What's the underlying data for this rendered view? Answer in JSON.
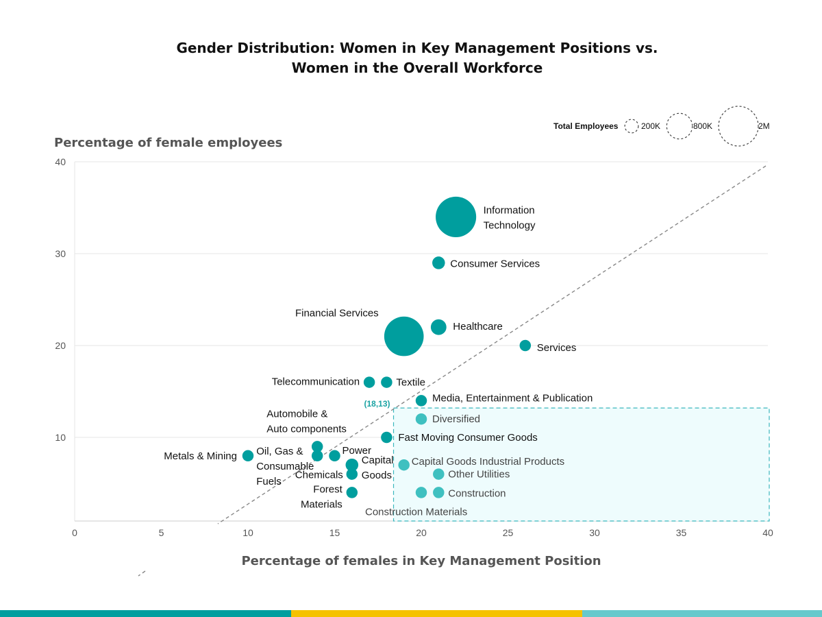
{
  "chart_data": {
    "type": "scatter",
    "title_lines": [
      "Gender Distribution: Women in Key Management Positions vs.",
      "Women in the Overall Workforce"
    ],
    "xlabel": "Percentage of females in Key Management Position",
    "ylabel": "Percentage of female employees",
    "xlim": [
      0,
      40
    ],
    "ylim": [
      0,
      40
    ],
    "x_ticks": [
      0,
      5,
      10,
      15,
      20,
      25,
      30,
      35,
      40
    ],
    "y_ticks": [
      10,
      20,
      30,
      40
    ],
    "grid": "horizontal",
    "reference_line": "dashed diagonal y = x",
    "legend": {
      "title": "Total Employees",
      "placement": "top-right",
      "items": [
        {
          "label": "200K",
          "value": 200000
        },
        {
          "label": "800K",
          "value": 800000
        },
        {
          "label": "2M",
          "value": 2000000
        }
      ]
    },
    "colors": {
      "point": "#009e9e",
      "point_highlight": "#3fc0c0",
      "highlight_box": "#3ab6bd",
      "annotation": "#1aa3a3"
    },
    "highlight_region": {
      "x": [
        18.4,
        40
      ],
      "y": [
        0,
        13.2
      ],
      "annotation": "(18,13)"
    },
    "points": [
      {
        "name": "Information Technology",
        "label_lines": [
          "Information",
          "Technology"
        ],
        "x": 22,
        "y": 34,
        "employees": 1800000,
        "highlight": false
      },
      {
        "name": "Consumer Services",
        "label_lines": [
          "Consumer Services"
        ],
        "x": 21,
        "y": 29,
        "employees": 100000,
        "highlight": false
      },
      {
        "name": "Healthcare",
        "label_lines": [
          "Healthcare"
        ],
        "x": 21,
        "y": 22,
        "employees": 180000,
        "highlight": false
      },
      {
        "name": "Financial Services",
        "label_lines": [
          "Financial Services"
        ],
        "x": 19,
        "y": 21,
        "employees": 1700000,
        "highlight": false
      },
      {
        "name": "Services",
        "label_lines": [
          "Services"
        ],
        "x": 26,
        "y": 20,
        "employees": 70000,
        "highlight": false
      },
      {
        "name": "Telecommunication",
        "label_lines": [
          "Telecommunication"
        ],
        "x": 17,
        "y": 16,
        "employees": 70000,
        "highlight": false
      },
      {
        "name": "Textile",
        "label_lines": [
          "Textile"
        ],
        "x": 18,
        "y": 16,
        "employees": 70000,
        "highlight": false
      },
      {
        "name": "Media, Entertainment & Publication",
        "label_lines": [
          "Media, Entertainment & Publication"
        ],
        "x": 20,
        "y": 14,
        "employees": 70000,
        "highlight": false
      },
      {
        "name": "Diversified",
        "label_lines": [
          "Diversified"
        ],
        "x": 20,
        "y": 12,
        "employees": 70000,
        "highlight": true
      },
      {
        "name": "Fast Moving Consumer Goods",
        "label_lines": [
          "Fast Moving Consumer Goods"
        ],
        "x": 18,
        "y": 10,
        "employees": 70000,
        "highlight": false
      },
      {
        "name": "Automobile & Auto components",
        "label_lines": [
          "Automobile &",
          "Auto components"
        ],
        "x": 14,
        "y": 9,
        "employees": 70000,
        "highlight": false
      },
      {
        "name": "Oil, Gas & Consumable Fuels",
        "label_lines": [
          "Oil, Gas &",
          "Consumable",
          "Fuels"
        ],
        "x": 14,
        "y": 8,
        "employees": 70000,
        "highlight": false
      },
      {
        "name": "Metals & Mining",
        "label_lines": [
          "Metals & Mining"
        ],
        "x": 10,
        "y": 8,
        "employees": 70000,
        "highlight": false
      },
      {
        "name": "Power",
        "label_lines": [
          "Power"
        ],
        "x": 15,
        "y": 8,
        "employees": 70000,
        "highlight": false
      },
      {
        "name": "Capital Goods",
        "label_lines": [
          "Capital",
          "Goods"
        ],
        "x": 16,
        "y": 7,
        "employees": 100000,
        "highlight": false
      },
      {
        "name": "Chemicals",
        "label_lines": [
          "Chemicals"
        ],
        "x": 16,
        "y": 6,
        "employees": 70000,
        "highlight": false
      },
      {
        "name": "Capital Goods Industrial Products",
        "label_lines": [
          "Capital Goods Industrial Products"
        ],
        "x": 19,
        "y": 7,
        "employees": 70000,
        "highlight": true
      },
      {
        "name": "Other Utilities",
        "label_lines": [
          "Other Utilities"
        ],
        "x": 21,
        "y": 6,
        "employees": 70000,
        "highlight": true
      },
      {
        "name": "Forest Materials",
        "label_lines": [
          "Forest",
          "Materials"
        ],
        "x": 16,
        "y": 4,
        "employees": 70000,
        "highlight": false
      },
      {
        "name": "Construction Materials",
        "label_lines": [
          "Construction Materials"
        ],
        "x": 20,
        "y": 4,
        "employees": 70000,
        "highlight": true
      },
      {
        "name": "Construction",
        "label_lines": [
          "Construction"
        ],
        "x": 21,
        "y": 4,
        "employees": 70000,
        "highlight": true
      }
    ]
  },
  "footer": {
    "stripe_colors": [
      "#009e9e",
      "#f5c200",
      "#66c9cc"
    ]
  }
}
